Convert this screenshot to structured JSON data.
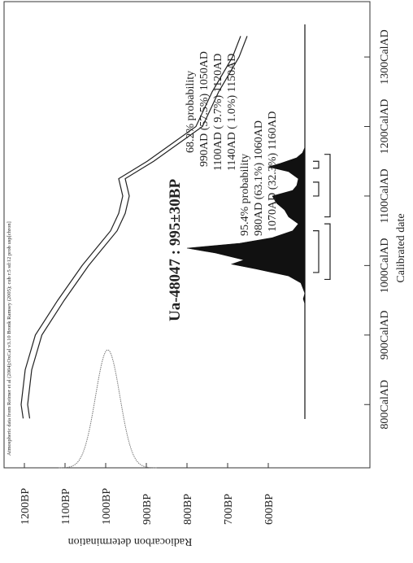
{
  "chart_data": {
    "type": "calibration",
    "header": "Atmospheric data from Reimer et al (2004);OxCal v3.10 Bronk Ramsey (2005); cub r:5 sd:12 prob usp[chron]",
    "title": "Ua-48047 : 995±30BP",
    "xlabel": "Calibrated date",
    "ylabel": "Radiocarbon determination",
    "xlim": [
      709,
      1382
    ],
    "ylim": [
      1250,
      350
    ],
    "xticks": [
      {
        "value": 800,
        "label": "800CalAD"
      },
      {
        "value": 900,
        "label": "900CalAD"
      },
      {
        "value": 1000,
        "label": "1000CalAD"
      },
      {
        "value": 1100,
        "label": "1100CalAD"
      },
      {
        "value": 1200,
        "label": "1200CalAD"
      },
      {
        "value": 1300,
        "label": "1300CalAD"
      }
    ],
    "yticks": [
      {
        "value": 1200,
        "label": "1200BP"
      },
      {
        "value": 1100,
        "label": "1100BP"
      },
      {
        "value": 1000,
        "label": "1000BP"
      },
      {
        "value": 900,
        "label": "900BP"
      },
      {
        "value": 800,
        "label": "800BP"
      },
      {
        "value": 700,
        "label": "700BP"
      },
      {
        "value": 600,
        "label": "600BP"
      }
    ],
    "measurement": {
      "mean": 995,
      "error": 30
    },
    "curve": {
      "x": [
        780,
        800,
        850,
        900,
        950,
        1000,
        1050,
        1075,
        1100,
        1125,
        1150,
        1175,
        1200,
        1250,
        1300,
        1330
      ],
      "series": [
        {
          "name": "upper",
          "color": "#222222",
          "values": [
            1203,
            1208,
            1198,
            1173,
            1118,
            1058,
            988,
            968,
            958,
            968,
            898,
            838,
            778,
            738,
            688,
            668
          ]
        },
        {
          "name": "lower",
          "color": "#222222",
          "values": [
            1187,
            1192,
            1182,
            1157,
            1102,
            1042,
            972,
            952,
            942,
            952,
            882,
            822,
            762,
            722,
            672,
            652
          ]
        }
      ]
    },
    "distribution": {
      "x": [
        900,
        945,
        952,
        960,
        975,
        985,
        995,
        1002,
        1008,
        1018,
        1025,
        1032,
        1040,
        1050,
        1060,
        1070,
        1080,
        1090,
        1100,
        1108,
        1115,
        1125,
        1135,
        1142,
        1147,
        1155,
        1162,
        1170
      ],
      "values": [
        0,
        0,
        2,
        0,
        5,
        20,
        60,
        90,
        75,
        110,
        145,
        80,
        40,
        15,
        8,
        20,
        25,
        35,
        40,
        15,
        10,
        8,
        20,
        45,
        30,
        10,
        3,
        0
      ],
      "color": "#111111"
    },
    "ranges": [
      {
        "level": "68.2% probability",
        "items": [
          {
            "label": "990AD (57.5%) 1050AD",
            "from": 990,
            "to": 1050
          },
          {
            "label": "1100AD ( 9.7%) 1120AD",
            "from": 1100,
            "to": 1120
          },
          {
            "label": "1140AD ( 1.0%) 1150AD",
            "from": 1140,
            "to": 1150
          }
        ]
      },
      {
        "level": "95.4% probability",
        "items": [
          {
            "label": "980AD (63.1%) 1060AD",
            "from": 980,
            "to": 1060
          },
          {
            "label": "1070AD (32.3%) 1160AD",
            "from": 1070,
            "to": 1160
          }
        ]
      }
    ]
  }
}
